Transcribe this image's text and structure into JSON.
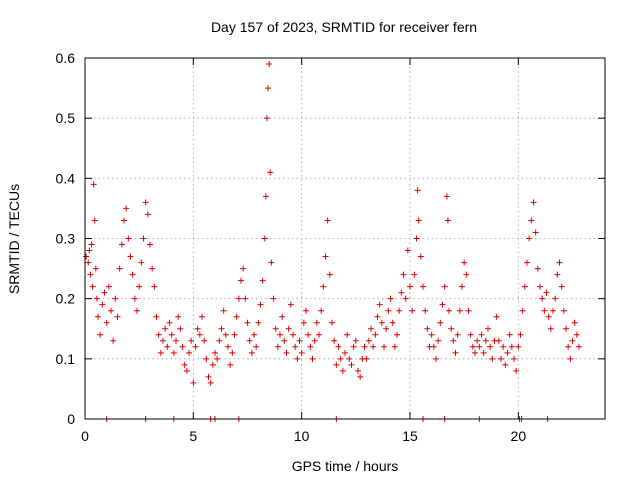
{
  "chart_data": {
    "type": "scatter",
    "title": "Day 157 of 2023, SRMTID for receiver fern",
    "xlabel": "GPS time / hours",
    "ylabel": "SRMTID / TECUs",
    "xlim": [
      0,
      24
    ],
    "ylim": [
      0,
      0.6
    ],
    "xticks": [
      0,
      5,
      10,
      15,
      20
    ],
    "xtick_labels": [
      "0",
      "5",
      "10",
      "15",
      "20"
    ],
    "yticks": [
      0,
      0.1,
      0.2,
      0.3,
      0.4,
      0.5,
      0.6
    ],
    "ytick_labels": [
      "0",
      "0.1",
      "0.2",
      "0.3",
      "0.4",
      "0.5",
      "0.6"
    ],
    "grid": true,
    "marker": "+",
    "color": "#e00000",
    "series": [
      {
        "name": "SRMTID",
        "points": [
          [
            0.05,
            0.27
          ],
          [
            0.15,
            0.26
          ],
          [
            0.2,
            0.28
          ],
          [
            0.25,
            0.24
          ],
          [
            0.3,
            0.29
          ],
          [
            0.35,
            0.22
          ],
          [
            0.4,
            0.39
          ],
          [
            0.45,
            0.33
          ],
          [
            0.5,
            0.25
          ],
          [
            0.55,
            0.2
          ],
          [
            0.6,
            0.17
          ],
          [
            0.7,
            0.14
          ],
          [
            0.8,
            0.19
          ],
          [
            0.9,
            0.21
          ],
          [
            1.0,
            0.16
          ],
          [
            1.1,
            0.22
          ],
          [
            1.2,
            0.18
          ],
          [
            1.3,
            0.13
          ],
          [
            1.4,
            0.2
          ],
          [
            1.5,
            0.17
          ],
          [
            1.6,
            0.25
          ],
          [
            1.7,
            0.29
          ],
          [
            1.8,
            0.33
          ],
          [
            1.9,
            0.35
          ],
          [
            2.0,
            0.3
          ],
          [
            2.1,
            0.27
          ],
          [
            2.2,
            0.24
          ],
          [
            2.3,
            0.2
          ],
          [
            2.4,
            0.18
          ],
          [
            2.5,
            0.22
          ],
          [
            2.6,
            0.26
          ],
          [
            2.7,
            0.3
          ],
          [
            2.8,
            0.36
          ],
          [
            2.9,
            0.34
          ],
          [
            3.0,
            0.29
          ],
          [
            3.1,
            0.25
          ],
          [
            3.2,
            0.22
          ],
          [
            3.3,
            0.17
          ],
          [
            3.4,
            0.14
          ],
          [
            3.5,
            0.11
          ],
          [
            3.6,
            0.13
          ],
          [
            3.7,
            0.15
          ],
          [
            3.8,
            0.12
          ],
          [
            3.9,
            0.16
          ],
          [
            4.0,
            0.14
          ],
          [
            4.1,
            0.11
          ],
          [
            4.2,
            0.13
          ],
          [
            4.3,
            0.17
          ],
          [
            4.4,
            0.15
          ],
          [
            4.5,
            0.12
          ],
          [
            4.6,
            0.09
          ],
          [
            4.7,
            0.08
          ],
          [
            4.8,
            0.11
          ],
          [
            4.9,
            0.13
          ],
          [
            5.0,
            0.06
          ],
          [
            5.1,
            0.12
          ],
          [
            5.2,
            0.15
          ],
          [
            5.3,
            0.14
          ],
          [
            5.4,
            0.17
          ],
          [
            5.5,
            0.13
          ],
          [
            5.6,
            0.1
          ],
          [
            5.7,
            0.07
          ],
          [
            5.8,
            0.06
          ],
          [
            5.9,
            0.09
          ],
          [
            6.0,
            0.11
          ],
          [
            6.1,
            0.1
          ],
          [
            6.2,
            0.13
          ],
          [
            6.3,
            0.15
          ],
          [
            6.4,
            0.18
          ],
          [
            6.5,
            0.14
          ],
          [
            6.6,
            0.12
          ],
          [
            6.7,
            0.09
          ],
          [
            6.8,
            0.11
          ],
          [
            6.9,
            0.14
          ],
          [
            7.0,
            0.17
          ],
          [
            7.1,
            0.2
          ],
          [
            7.2,
            0.23
          ],
          [
            7.3,
            0.25
          ],
          [
            7.4,
            0.2
          ],
          [
            7.5,
            0.16
          ],
          [
            7.6,
            0.13
          ],
          [
            7.7,
            0.11
          ],
          [
            7.8,
            0.14
          ],
          [
            7.9,
            0.12
          ],
          [
            8.0,
            0.16
          ],
          [
            8.1,
            0.19
          ],
          [
            8.2,
            0.23
          ],
          [
            8.3,
            0.3
          ],
          [
            8.35,
            0.37
          ],
          [
            8.4,
            0.5
          ],
          [
            8.45,
            0.55
          ],
          [
            8.5,
            0.59
          ],
          [
            8.55,
            0.41
          ],
          [
            8.6,
            0.26
          ],
          [
            8.7,
            0.2
          ],
          [
            8.8,
            0.15
          ],
          [
            8.9,
            0.12
          ],
          [
            9.0,
            0.14
          ],
          [
            9.1,
            0.17
          ],
          [
            9.2,
            0.13
          ],
          [
            9.3,
            0.11
          ],
          [
            9.4,
            0.15
          ],
          [
            9.5,
            0.19
          ],
          [
            9.6,
            0.14
          ],
          [
            9.7,
            0.12
          ],
          [
            9.8,
            0.1
          ],
          [
            9.9,
            0.13
          ],
          [
            10.0,
            0.11
          ],
          [
            10.1,
            0.16
          ],
          [
            10.2,
            0.18
          ],
          [
            10.3,
            0.14
          ],
          [
            10.4,
            0.12
          ],
          [
            10.5,
            0.1
          ],
          [
            10.6,
            0.13
          ],
          [
            10.7,
            0.16
          ],
          [
            10.8,
            0.14
          ],
          [
            10.9,
            0.18
          ],
          [
            11.0,
            0.22
          ],
          [
            11.1,
            0.27
          ],
          [
            11.2,
            0.33
          ],
          [
            11.3,
            0.24
          ],
          [
            11.4,
            0.16
          ],
          [
            11.5,
            0.13
          ],
          [
            11.6,
            0.09
          ],
          [
            11.7,
            0.12
          ],
          [
            11.8,
            0.1
          ],
          [
            11.9,
            0.08
          ],
          [
            12.0,
            0.11
          ],
          [
            12.1,
            0.14
          ],
          [
            12.2,
            0.1
          ],
          [
            12.3,
            0.09
          ],
          [
            12.4,
            0.12
          ],
          [
            12.5,
            0.13
          ],
          [
            12.6,
            0.08
          ],
          [
            12.7,
            0.07
          ],
          [
            12.8,
            0.1
          ],
          [
            12.9,
            0.12
          ],
          [
            13.0,
            0.1
          ],
          [
            13.1,
            0.13
          ],
          [
            13.2,
            0.15
          ],
          [
            13.3,
            0.12
          ],
          [
            13.4,
            0.14
          ],
          [
            13.5,
            0.17
          ],
          [
            13.6,
            0.19
          ],
          [
            13.7,
            0.16
          ],
          [
            13.8,
            0.12
          ],
          [
            13.9,
            0.15
          ],
          [
            14.0,
            0.18
          ],
          [
            14.1,
            0.2
          ],
          [
            14.2,
            0.16
          ],
          [
            14.3,
            0.12
          ],
          [
            14.4,
            0.14
          ],
          [
            14.5,
            0.18
          ],
          [
            14.6,
            0.21
          ],
          [
            14.7,
            0.24
          ],
          [
            14.8,
            0.2
          ],
          [
            14.9,
            0.28
          ],
          [
            15.0,
            0.22
          ],
          [
            15.1,
            0.18
          ],
          [
            15.2,
            0.24
          ],
          [
            15.3,
            0.3
          ],
          [
            15.35,
            0.38
          ],
          [
            15.4,
            0.33
          ],
          [
            15.5,
            0.27
          ],
          [
            15.6,
            0.22
          ],
          [
            15.7,
            0.18
          ],
          [
            15.8,
            0.15
          ],
          [
            15.9,
            0.12
          ],
          [
            16.0,
            0.14
          ],
          [
            16.1,
            0.12
          ],
          [
            16.2,
            0.1
          ],
          [
            16.3,
            0.13
          ],
          [
            16.4,
            0.16
          ],
          [
            16.5,
            0.19
          ],
          [
            16.6,
            0.22
          ],
          [
            16.7,
            0.37
          ],
          [
            16.75,
            0.33
          ],
          [
            16.8,
            0.18
          ],
          [
            16.9,
            0.15
          ],
          [
            17.0,
            0.13
          ],
          [
            17.1,
            0.11
          ],
          [
            17.2,
            0.14
          ],
          [
            17.3,
            0.18
          ],
          [
            17.4,
            0.22
          ],
          [
            17.5,
            0.26
          ],
          [
            17.6,
            0.24
          ],
          [
            17.7,
            0.18
          ],
          [
            17.8,
            0.14
          ],
          [
            17.9,
            0.12
          ],
          [
            18.0,
            0.11
          ],
          [
            18.1,
            0.13
          ],
          [
            18.2,
            0.12
          ],
          [
            18.3,
            0.14
          ],
          [
            18.4,
            0.11
          ],
          [
            18.5,
            0.13
          ],
          [
            18.6,
            0.15
          ],
          [
            18.7,
            0.12
          ],
          [
            18.8,
            0.1
          ],
          [
            18.9,
            0.13
          ],
          [
            19.0,
            0.17
          ],
          [
            19.1,
            0.13
          ],
          [
            19.2,
            0.1
          ],
          [
            19.3,
            0.12
          ],
          [
            19.4,
            0.09
          ],
          [
            19.5,
            0.11
          ],
          [
            19.6,
            0.14
          ],
          [
            19.7,
            0.12
          ],
          [
            19.8,
            0.1
          ],
          [
            19.9,
            0.08
          ],
          [
            20.0,
            0.12
          ],
          [
            20.1,
            0.14
          ],
          [
            20.2,
            0.18
          ],
          [
            20.3,
            0.22
          ],
          [
            20.4,
            0.26
          ],
          [
            20.5,
            0.3
          ],
          [
            20.6,
            0.33
          ],
          [
            20.7,
            0.36
          ],
          [
            20.8,
            0.31
          ],
          [
            20.9,
            0.25
          ],
          [
            21.0,
            0.22
          ],
          [
            21.1,
            0.2
          ],
          [
            21.2,
            0.18
          ],
          [
            21.3,
            0.21
          ],
          [
            21.4,
            0.17
          ],
          [
            21.5,
            0.15
          ],
          [
            21.6,
            0.18
          ],
          [
            21.7,
            0.2
          ],
          [
            21.8,
            0.24
          ],
          [
            21.9,
            0.26
          ],
          [
            22.0,
            0.22
          ],
          [
            22.1,
            0.18
          ],
          [
            22.2,
            0.15
          ],
          [
            22.3,
            0.12
          ],
          [
            22.4,
            0.1
          ],
          [
            22.5,
            0.13
          ],
          [
            22.6,
            0.16
          ],
          [
            22.7,
            0.14
          ],
          [
            22.8,
            0.12
          ]
        ]
      }
    ],
    "zero_points": [
      1.0,
      2.8,
      4.1,
      5.8,
      6.0,
      7.1,
      11.6,
      15.6,
      16.6,
      18.2,
      20.05,
      20.15,
      21.35
    ]
  }
}
